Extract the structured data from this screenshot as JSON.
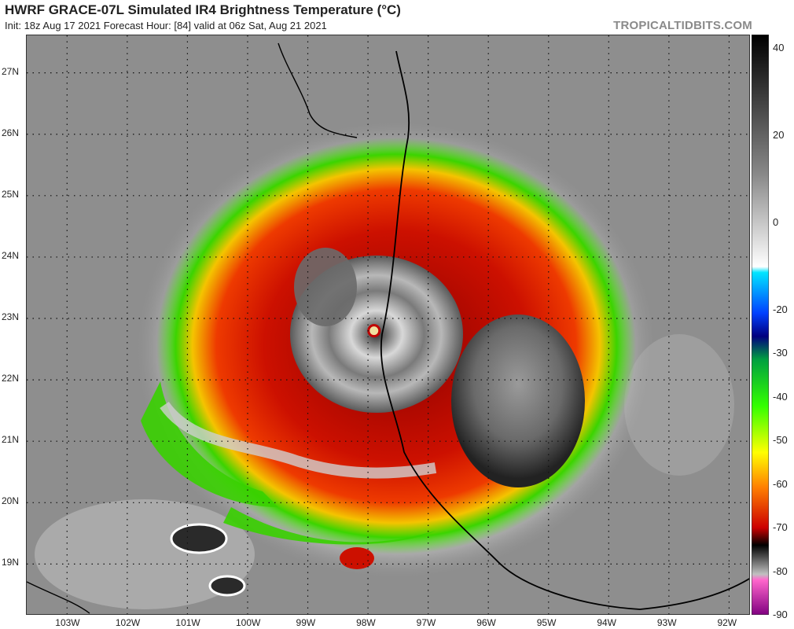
{
  "header": {
    "title": "HWRF GRACE-07L Simulated IR4 Brightness Temperature (°C)",
    "subtitle": "Init: 18z Aug 17 2021   Forecast Hour: [84]   valid at 06z Sat, Aug 21 2021",
    "credit": "TROPICALTIDBITS.COM"
  },
  "map": {
    "lat_labels": [
      "27N",
      "26N",
      "25N",
      "24N",
      "23N",
      "22N",
      "21N",
      "20N",
      "19N"
    ],
    "lat_values": [
      27,
      26,
      25,
      24,
      23,
      22,
      21,
      20,
      19
    ],
    "lon_labels": [
      "103W",
      "102W",
      "101W",
      "100W",
      "99W",
      "98W",
      "97W",
      "96W",
      "95W",
      "94W",
      "93W",
      "92W"
    ],
    "lon_values": [
      -103,
      -102,
      -101,
      -100,
      -99,
      -98,
      -97,
      -96,
      -95,
      -94,
      -93,
      -92
    ],
    "storm_center": {
      "lat": 22.8,
      "lon": -97.9
    }
  },
  "colorbar": {
    "labels": [
      "40",
      "20",
      "0",
      "-20",
      "-30",
      "-40",
      "-50",
      "-60",
      "-70",
      "-80",
      "-90"
    ],
    "values": [
      40,
      20,
      0,
      -20,
      -30,
      -40,
      -50,
      -60,
      -70,
      -80,
      -90
    ],
    "range": [
      -90,
      43
    ],
    "unit": "°C"
  },
  "palette": {
    "background_gray": "#8e8e8e",
    "coast_line": "#000000",
    "grid_dots": "#111111"
  }
}
